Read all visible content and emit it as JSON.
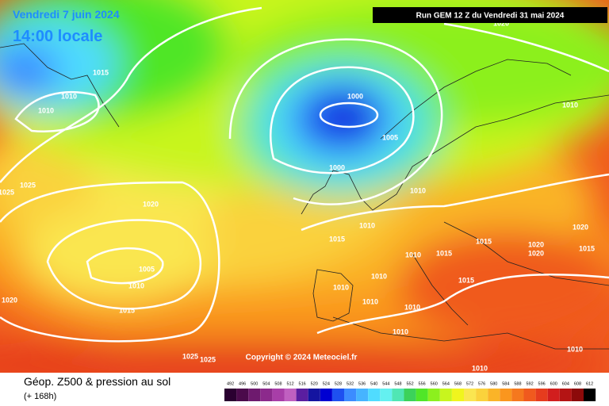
{
  "header": {
    "date": "Vendredi 7 juin 2024",
    "time": "14:00 locale",
    "run": "Run GEM 12 Z du Vendredi 31 mai 2024"
  },
  "copyright": "Copyright © 2024 Meteociel.fr",
  "footer": {
    "title": "Géop. Z500 & pression au sol",
    "lead": "(+ 168h)"
  },
  "isobar_labels": [
    "1015",
    "1010",
    "1010",
    "1025",
    "1025",
    "1020",
    "1005",
    "1010",
    "1015",
    "1020",
    "1000",
    "1005",
    "1000",
    "1010",
    "1010",
    "1015",
    "1010",
    "1015",
    "1015",
    "1010",
    "1010",
    "1010",
    "1010",
    "1010",
    "1015",
    "1020",
    "1020",
    "1020",
    "1015",
    "1010",
    "1020",
    "1010",
    "1010",
    "1025",
    "1025"
  ],
  "legend": [
    {
      "label": "492",
      "color": "#2a0030"
    },
    {
      "label": "496",
      "color": "#4b0a4b"
    },
    {
      "label": "500",
      "color": "#6e1a6e"
    },
    {
      "label": "504",
      "color": "#8c2a8c"
    },
    {
      "label": "508",
      "color": "#a83ea8"
    },
    {
      "label": "512",
      "color": "#c060c0"
    },
    {
      "label": "516",
      "color": "#5a1ea0"
    },
    {
      "label": "520",
      "color": "#1414a0"
    },
    {
      "label": "524",
      "color": "#0000d2"
    },
    {
      "label": "528",
      "color": "#1e50f0"
    },
    {
      "label": "532",
      "color": "#3c8cff"
    },
    {
      "label": "536",
      "color": "#46b4ff"
    },
    {
      "label": "540",
      "color": "#50dcff"
    },
    {
      "label": "544",
      "color": "#64f0f0"
    },
    {
      "label": "548",
      "color": "#50e6b4"
    },
    {
      "label": "552",
      "color": "#3cd25a"
    },
    {
      "label": "556",
      "color": "#50e628"
    },
    {
      "label": "560",
      "color": "#8cf01e"
    },
    {
      "label": "564",
      "color": "#c8f51e"
    },
    {
      "label": "568",
      "color": "#f0f51e"
    },
    {
      "label": "572",
      "color": "#fae650"
    },
    {
      "label": "576",
      "color": "#fad23c"
    },
    {
      "label": "580",
      "color": "#fab428"
    },
    {
      "label": "584",
      "color": "#fa961e"
    },
    {
      "label": "588",
      "color": "#f5781e"
    },
    {
      "label": "592",
      "color": "#f05a1e"
    },
    {
      "label": "596",
      "color": "#e63c1e"
    },
    {
      "label": "600",
      "color": "#d21e1e"
    },
    {
      "label": "604",
      "color": "#b41414"
    },
    {
      "label": "608",
      "color": "#8c0a0a"
    },
    {
      "label": "612",
      "color": "#000000"
    }
  ]
}
